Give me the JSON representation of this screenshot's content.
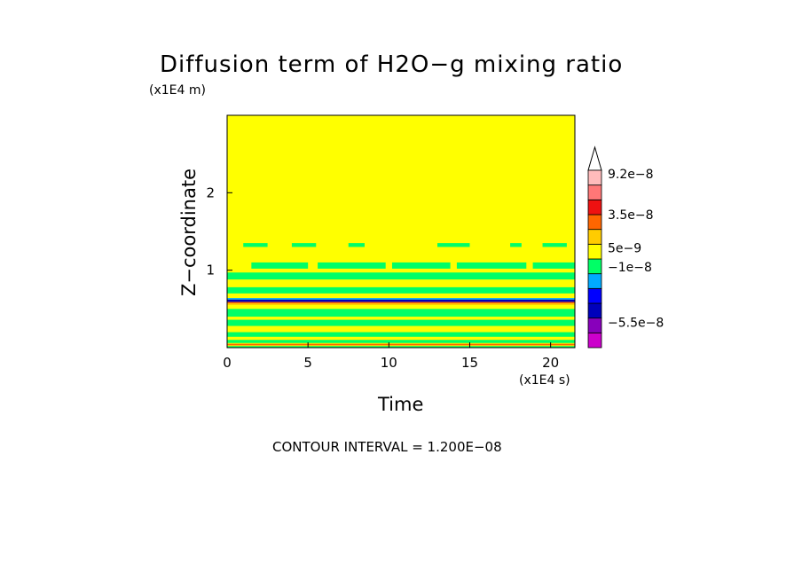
{
  "chart_data": {
    "type": "heatmap",
    "title": "Diffusion term of H2O−g mixing ratio",
    "xlabel": "Time",
    "ylabel": "Z−coordinate",
    "x_unit": "(x1E4 s)",
    "y_unit": "(x1E4 m)",
    "x_ticks": [
      0,
      5,
      10,
      15,
      20
    ],
    "y_ticks": [
      1,
      2
    ],
    "xlim": [
      0,
      21.5
    ],
    "ylim": [
      0,
      3
    ],
    "contour_interval": "CONTOUR INTERVAL = 1.200E−08",
    "colorbar": {
      "labels": [
        {
          "text": "9.2e−8",
          "value": 9.2e-08
        },
        {
          "text": "3.5e−8",
          "value": 3.5e-08
        },
        {
          "text": "5e−9",
          "value": 5e-09
        },
        {
          "text": "−1e−8",
          "value": -1e-08
        },
        {
          "text": "−5.5e−8",
          "value": -5.5e-08
        }
      ],
      "levels": [
        {
          "from": -7e-08,
          "to": -5.5e-08,
          "color": "#cc00cc"
        },
        {
          "from": -5.5e-08,
          "to": -4e-08,
          "color": "#8800bb"
        },
        {
          "from": -4e-08,
          "to": -2.5e-08,
          "color": "#0000bb"
        },
        {
          "from": -2.5e-08,
          "to": -1e-08,
          "color": "#0000ff"
        },
        {
          "from": -1e-08,
          "to": -5e-09,
          "color": "#00aaff"
        },
        {
          "from": -5e-09,
          "to": 0,
          "color": "#00ff66"
        },
        {
          "from": 0,
          "to": 5e-09,
          "color": "#ffff00"
        },
        {
          "from": 5e-09,
          "to": 1e-08,
          "color": "#ffcc00"
        },
        {
          "from": 1e-08,
          "to": 3.5e-08,
          "color": "#ff6600"
        },
        {
          "from": 3.5e-08,
          "to": 6e-08,
          "color": "#ee1111"
        },
        {
          "from": 6e-08,
          "to": 7.5e-08,
          "color": "#ff7777"
        },
        {
          "from": 7.5e-08,
          "to": 9.2e-08,
          "color": "#ffbbbb"
        }
      ],
      "background_color": "#ffff00"
    },
    "bands": [
      {
        "z_from": 1.3,
        "z_to": 1.35,
        "color": "#00ff66",
        "pattern": "sparse"
      },
      {
        "z_from": 1.02,
        "z_to": 1.1,
        "color": "#00ff66",
        "pattern": "patchy"
      },
      {
        "z_from": 0.88,
        "z_to": 0.97,
        "color": "#00ff66",
        "pattern": "solid"
      },
      {
        "z_from": 0.7,
        "z_to": 0.78,
        "color": "#00ff66",
        "pattern": "solid"
      },
      {
        "z_from": 0.62,
        "z_to": 0.64,
        "color": "#00aaff",
        "pattern": "solid"
      },
      {
        "z_from": 0.59,
        "z_to": 0.62,
        "color": "#0000bb",
        "pattern": "solid"
      },
      {
        "z_from": 0.57,
        "z_to": 0.59,
        "color": "#ff6600",
        "pattern": "solid"
      },
      {
        "z_from": 0.55,
        "z_to": 0.57,
        "color": "#ffcc00",
        "pattern": "solid"
      },
      {
        "z_from": 0.4,
        "z_to": 0.5,
        "color": "#00ff66",
        "pattern": "solid"
      },
      {
        "z_from": 0.28,
        "z_to": 0.36,
        "color": "#00ff66",
        "pattern": "solid"
      },
      {
        "z_from": 0.14,
        "z_to": 0.2,
        "color": "#00ff66",
        "pattern": "solid"
      },
      {
        "z_from": 0.06,
        "z_to": 0.1,
        "color": "#00ff66",
        "pattern": "solid"
      },
      {
        "z_from": 0.03,
        "z_to": 0.05,
        "color": "#ff6600",
        "pattern": "solid"
      },
      {
        "z_from": 0.0,
        "z_to": 0.02,
        "color": "#00ff66",
        "pattern": "solid"
      }
    ]
  }
}
